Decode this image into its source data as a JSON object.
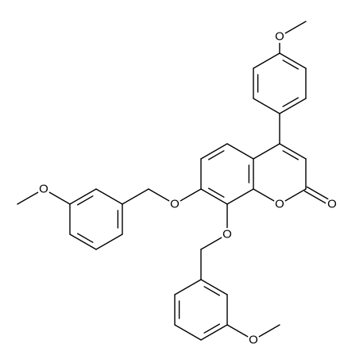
{
  "atoms": [
    {
      "label": "O"
    },
    {
      "label": "O"
    },
    {
      "label": "O"
    },
    {
      "label": "O"
    },
    {
      "label": "O"
    },
    {
      "label": "O"
    },
    {
      "label": "O"
    }
  ]
}
